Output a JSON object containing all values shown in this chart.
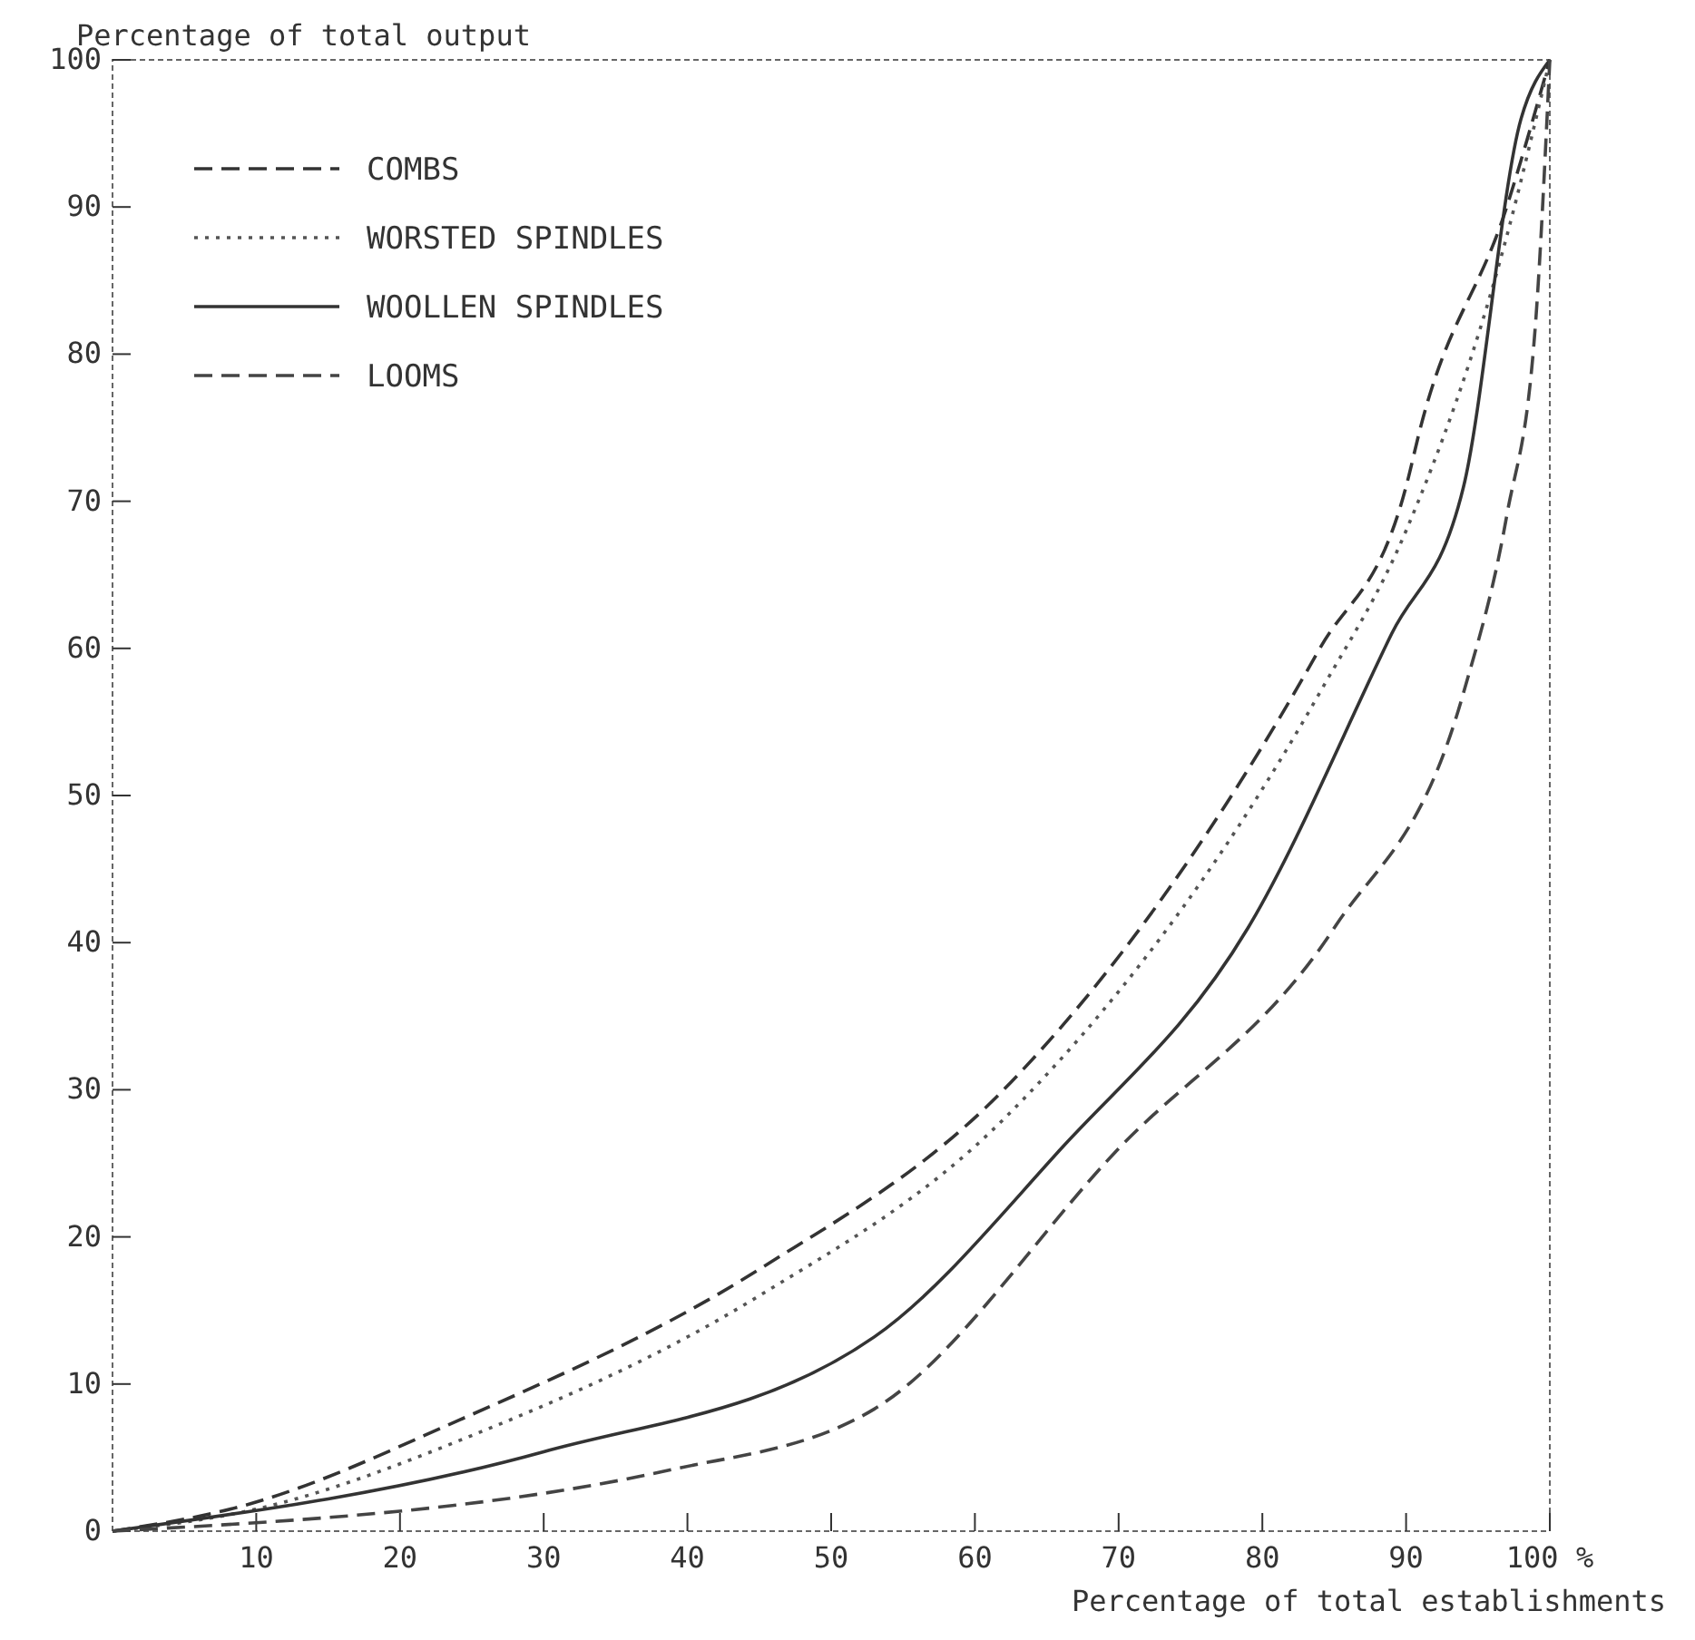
{
  "chart_data": {
    "type": "line",
    "ylabel": "Percentage of total output",
    "xlabel": "Percentage of total establishments",
    "xlim": [
      0,
      100
    ],
    "ylim": [
      0,
      100
    ],
    "xticks": [
      10,
      20,
      30,
      40,
      50,
      60,
      70,
      80,
      90,
      {
        "value": 100,
        "label": "100 %"
      }
    ],
    "yticks": [
      0,
      10,
      20,
      30,
      40,
      50,
      60,
      70,
      80,
      90,
      100
    ],
    "legend": "top left",
    "grid": false,
    "marker": "none",
    "series": [
      {
        "name": "COMBS",
        "color": "#333333",
        "line_style": "dashed",
        "x": [
          0,
          9,
          24,
          45,
          62,
          84,
          90,
          91,
          97,
          100
        ],
        "values": [
          0,
          1.7,
          7.5,
          17.8,
          30,
          60,
          71,
          75,
          90,
          100
        ]
      },
      {
        "name": "WORSTED SPINDLES",
        "color": "#555555",
        "line_style": "dotted",
        "x": [
          0,
          10,
          25,
          45,
          62,
          84,
          90,
          97,
          100
        ],
        "values": [
          0,
          1.5,
          6.5,
          16,
          28,
          57,
          68,
          88,
          100
        ]
      },
      {
        "name": "WOOLLEN SPINDLES",
        "color": "#333333",
        "line_style": "solid",
        "x": [
          0,
          30,
          53,
          66,
          79,
          89,
          94,
          98,
          100
        ],
        "values": [
          0,
          5.4,
          13.2,
          26,
          41,
          61,
          71,
          96,
          100
        ]
      },
      {
        "name": "LOOMS",
        "color": "#444444",
        "line_style": "dashed",
        "x": [
          0,
          39,
          53,
          70,
          85,
          94,
          97,
          99,
          100
        ],
        "values": [
          0,
          4.2,
          8.3,
          26,
          41,
          57,
          69,
          82,
          100
        ]
      }
    ]
  }
}
